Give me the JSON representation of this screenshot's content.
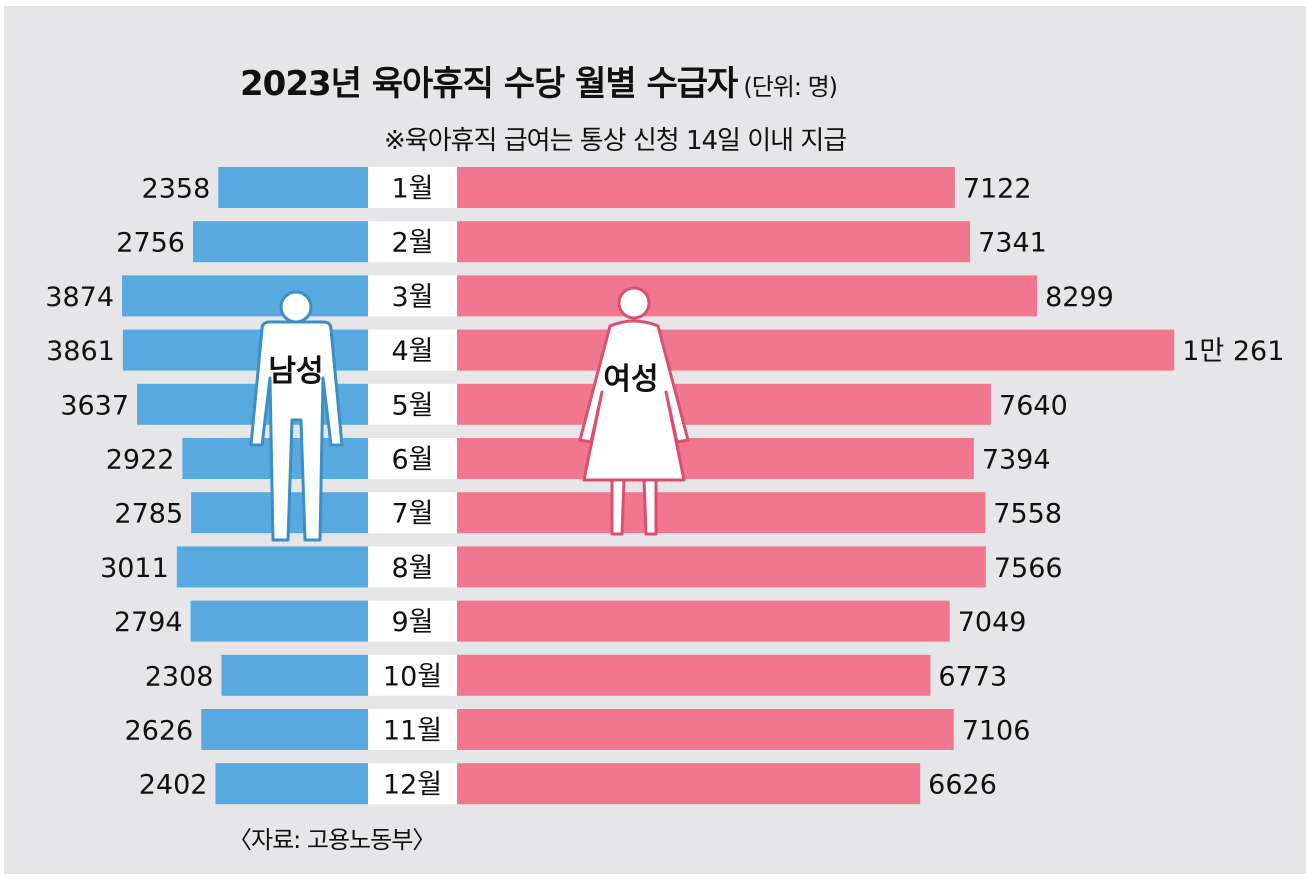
{
  "chart_data": {
    "type": "bar",
    "title": "2023년 육아휴직 수당 월별 수급자",
    "unit_note": "(단위: 명)",
    "note": "※육아휴직 급여는 통상 신청 14일 이내 지급",
    "source": "〈자료: 고용노동부〉",
    "categories": [
      "1월",
      "2월",
      "3월",
      "4월",
      "5월",
      "6월",
      "7월",
      "8월",
      "9월",
      "10월",
      "11월",
      "12월"
    ],
    "series": [
      {
        "name": "남성",
        "color": "#58a9df",
        "values": [
          2358,
          2756,
          3874,
          3861,
          3637,
          2922,
          2785,
          3011,
          2794,
          2308,
          2626,
          2402
        ],
        "labels": [
          "2358",
          "2756",
          "3874",
          "3861",
          "3637",
          "2922",
          "2785",
          "3011",
          "2794",
          "2308",
          "2626",
          "2402"
        ]
      },
      {
        "name": "여성",
        "color": "#f0778f",
        "values": [
          7122,
          7341,
          8299,
          10261,
          7640,
          7394,
          7558,
          7566,
          7049,
          6773,
          7106,
          6626
        ],
        "labels": [
          "7122",
          "7341",
          "8299",
          "1만 261",
          "7640",
          "7394",
          "7558",
          "7566",
          "7049",
          "6773",
          "7106",
          "6626"
        ]
      }
    ],
    "legend": "figures inside bars",
    "grid": false
  }
}
